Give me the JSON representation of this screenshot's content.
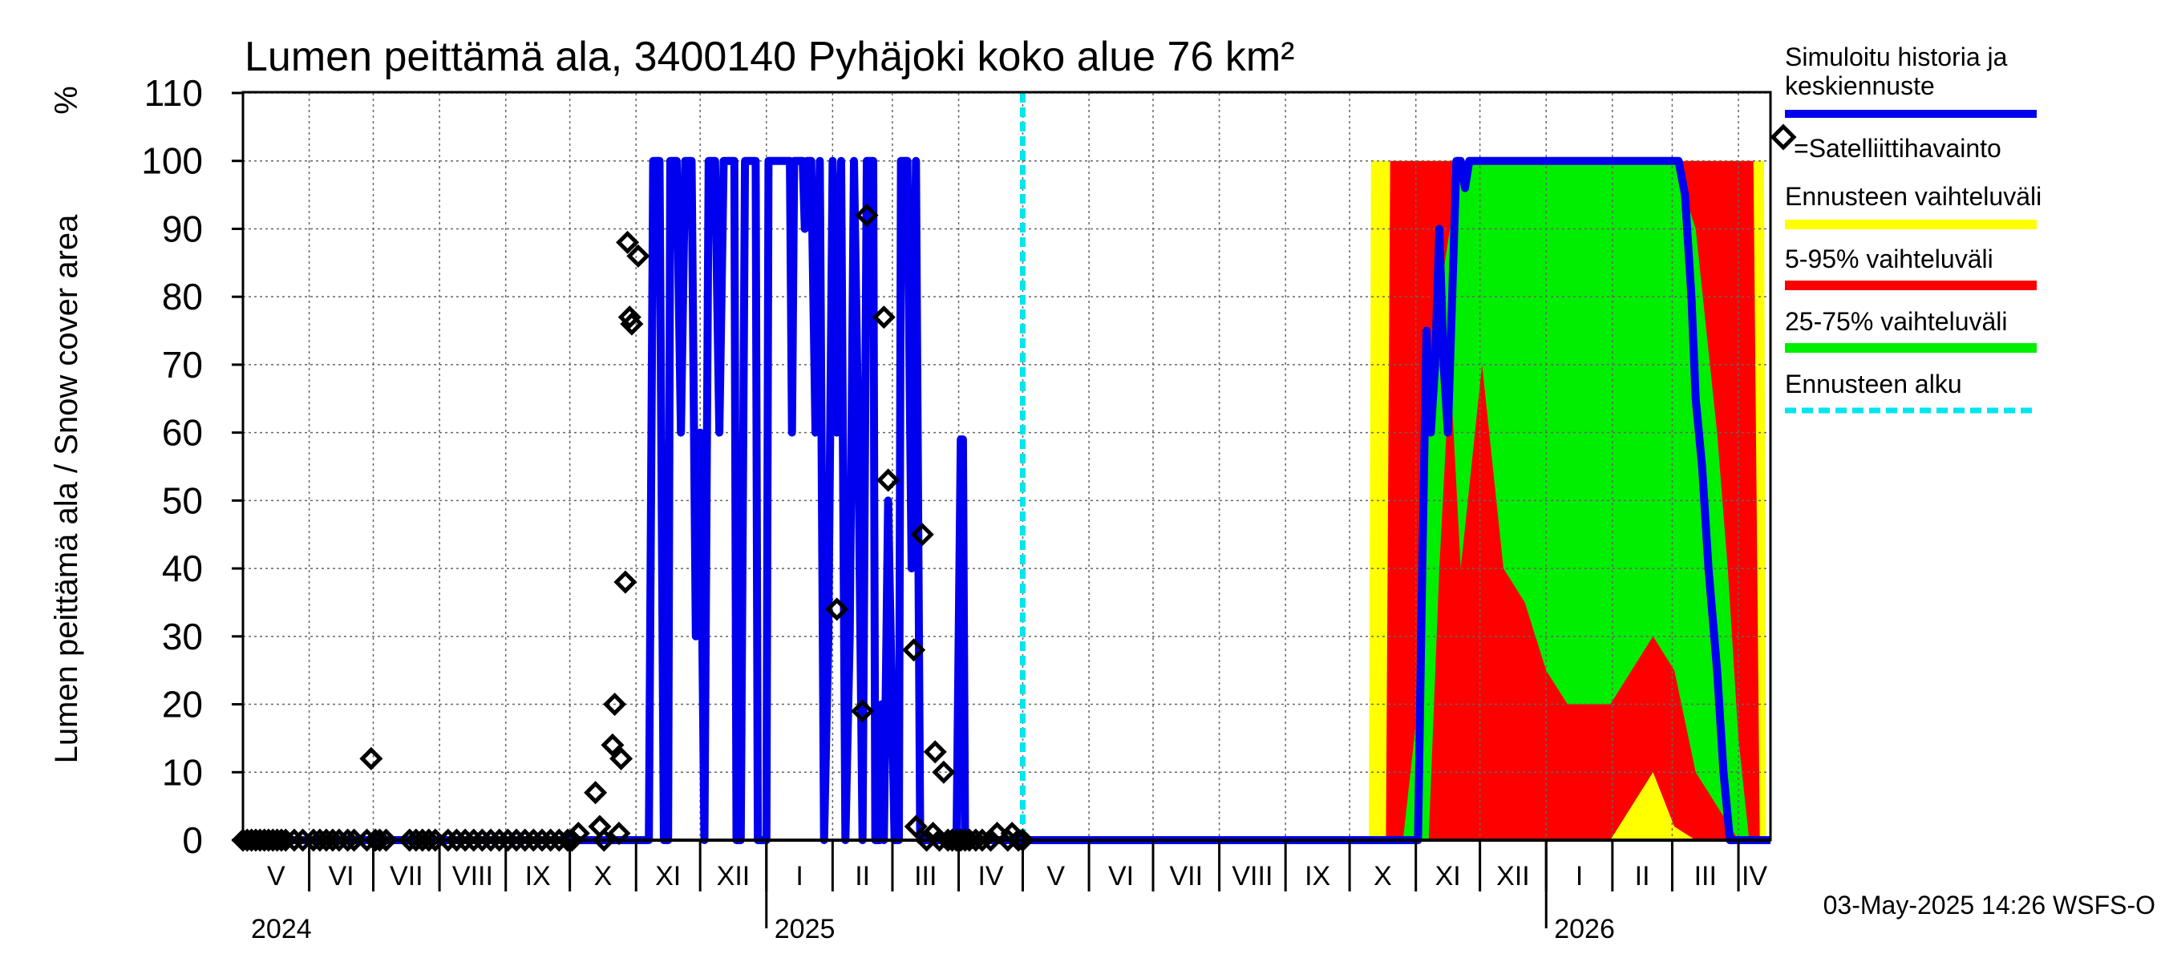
{
  "chart_data": {
    "type": "area",
    "title": "Lumen peittämä ala, 3400140 Pyhäjoki koko alue 76 km²",
    "ylabel": "Lumen peittämä ala / Snow cover area",
    "yunit": "%",
    "ylim": [
      0,
      110
    ],
    "yticks": [
      0,
      10,
      20,
      30,
      40,
      50,
      60,
      70,
      80,
      90,
      100,
      110
    ],
    "x_start_day": 0,
    "x_end_day": 715,
    "forecast_start_day": 365,
    "months": [
      {
        "label": "V",
        "start": 0,
        "end": 31
      },
      {
        "label": "VI",
        "start": 31,
        "end": 61
      },
      {
        "label": "VII",
        "start": 61,
        "end": 92
      },
      {
        "label": "VIII",
        "start": 92,
        "end": 123
      },
      {
        "label": "IX",
        "start": 123,
        "end": 153
      },
      {
        "label": "X",
        "start": 153,
        "end": 184
      },
      {
        "label": "XI",
        "start": 184,
        "end": 214
      },
      {
        "label": "XII",
        "start": 214,
        "end": 245
      },
      {
        "label": "I",
        "start": 245,
        "end": 276
      },
      {
        "label": "II",
        "start": 276,
        "end": 304
      },
      {
        "label": "III",
        "start": 304,
        "end": 335
      },
      {
        "label": "IV",
        "start": 335,
        "end": 365
      },
      {
        "label": "V",
        "start": 365,
        "end": 396
      },
      {
        "label": "VI",
        "start": 396,
        "end": 426
      },
      {
        "label": "VII",
        "start": 426,
        "end": 457
      },
      {
        "label": "VIII",
        "start": 457,
        "end": 488
      },
      {
        "label": "IX",
        "start": 488,
        "end": 518
      },
      {
        "label": "X",
        "start": 518,
        "end": 549
      },
      {
        "label": "XI",
        "start": 549,
        "end": 579
      },
      {
        "label": "XII",
        "start": 579,
        "end": 610
      },
      {
        "label": "I",
        "start": 610,
        "end": 641
      },
      {
        "label": "II",
        "start": 641,
        "end": 669
      },
      {
        "label": "III",
        "start": 669,
        "end": 700
      },
      {
        "label": "IV",
        "start": 700,
        "end": 730
      }
    ],
    "years": [
      {
        "label": "2024",
        "day": 0
      },
      {
        "label": "2025",
        "day": 245
      },
      {
        "label": "2026",
        "day": 610
      }
    ],
    "legend": {
      "history": "Simuloitu historia ja keskiennuste",
      "satellite": "=Satelliittihavainto",
      "range": "Ennusteen vaihteluväli",
      "p5_95": "5-95% vaihteluväli",
      "p25_75": "25-75% vaihteluväli",
      "forecast_start": "Ennusteen alku"
    },
    "colors": {
      "history": "#0000ee",
      "range": "#ffff00",
      "p5_95": "#ff0000",
      "p25_75": "#00ee00",
      "forecast_start": "#00e5ee",
      "grid": "#666666"
    },
    "timestamp": "03-May-2025 14:26 WSFS-O",
    "series": [
      {
        "name": "Simuloitu historia ja keskiennuste",
        "points": [
          [
            0,
            0
          ],
          [
            190,
            0
          ],
          [
            192,
            100
          ],
          [
            195,
            100
          ],
          [
            197,
            0
          ],
          [
            199,
            0
          ],
          [
            200,
            100
          ],
          [
            203,
            100
          ],
          [
            205,
            60
          ],
          [
            207,
            100
          ],
          [
            210,
            100
          ],
          [
            212,
            30
          ],
          [
            214,
            60
          ],
          [
            216,
            0
          ],
          [
            218,
            100
          ],
          [
            221,
            100
          ],
          [
            223,
            60
          ],
          [
            225,
            100
          ],
          [
            228,
            100
          ],
          [
            230,
            100
          ],
          [
            231,
            0
          ],
          [
            233,
            0
          ],
          [
            235,
            100
          ],
          [
            238,
            100
          ],
          [
            240,
            100
          ],
          [
            241,
            0
          ],
          [
            243,
            0
          ],
          [
            245,
            0
          ],
          [
            246,
            100
          ],
          [
            249,
            100
          ],
          [
            252,
            100
          ],
          [
            256,
            100
          ],
          [
            257,
            60
          ],
          [
            258,
            100
          ],
          [
            262,
            100
          ],
          [
            263,
            90
          ],
          [
            264,
            100
          ],
          [
            266,
            100
          ],
          [
            268,
            60
          ],
          [
            270,
            100
          ],
          [
            272,
            0
          ],
          [
            274,
            30
          ],
          [
            276,
            100
          ],
          [
            278,
            60
          ],
          [
            280,
            100
          ],
          [
            282,
            0
          ],
          [
            284,
            30
          ],
          [
            286,
            100
          ],
          [
            288,
            60
          ],
          [
            290,
            0
          ],
          [
            292,
            100
          ],
          [
            295,
            100
          ],
          [
            296,
            0
          ],
          [
            298,
            0
          ],
          [
            299,
            20
          ],
          [
            300,
            0
          ],
          [
            302,
            50
          ],
          [
            305,
            0
          ],
          [
            307,
            0
          ],
          [
            308,
            100
          ],
          [
            311,
            100
          ],
          [
            313,
            40
          ],
          [
            315,
            100
          ],
          [
            317,
            0
          ],
          [
            319,
            0
          ],
          [
            321,
            0
          ],
          [
            323,
            0
          ],
          [
            325,
            0
          ],
          [
            327,
            0
          ],
          [
            329,
            0
          ],
          [
            331,
            0
          ],
          [
            333,
            0
          ],
          [
            334,
            0
          ],
          [
            336,
            59
          ],
          [
            337,
            59
          ],
          [
            338,
            0
          ],
          [
            340,
            0
          ],
          [
            365,
            0
          ],
          [
            550,
            0
          ],
          [
            552,
            40
          ],
          [
            554,
            75
          ],
          [
            556,
            60
          ],
          [
            558,
            70
          ],
          [
            560,
            90
          ],
          [
            562,
            70
          ],
          [
            564,
            60
          ],
          [
            566,
            80
          ],
          [
            568,
            100
          ],
          [
            570,
            100
          ],
          [
            572,
            96
          ],
          [
            574,
            100
          ],
          [
            580,
            100
          ],
          [
            590,
            100
          ],
          [
            600,
            100
          ],
          [
            610,
            100
          ],
          [
            620,
            100
          ],
          [
            630,
            100
          ],
          [
            640,
            100
          ],
          [
            650,
            100
          ],
          [
            660,
            100
          ],
          [
            672,
            100
          ],
          [
            675,
            95
          ],
          [
            678,
            80
          ],
          [
            680,
            65
          ],
          [
            683,
            55
          ],
          [
            686,
            40
          ],
          [
            690,
            25
          ],
          [
            693,
            10
          ],
          [
            696,
            0
          ],
          [
            715,
            0
          ]
        ]
      },
      {
        "name": "=Satelliittihavainto",
        "points": [
          [
            0,
            0
          ],
          [
            2,
            0
          ],
          [
            4,
            0
          ],
          [
            6,
            0
          ],
          [
            8,
            0
          ],
          [
            10,
            0
          ],
          [
            12,
            0
          ],
          [
            14,
            0
          ],
          [
            16,
            0
          ],
          [
            18,
            0
          ],
          [
            20,
            0
          ],
          [
            24,
            0
          ],
          [
            28,
            0
          ],
          [
            33,
            0
          ],
          [
            36,
            0
          ],
          [
            39,
            0
          ],
          [
            42,
            0
          ],
          [
            45,
            0
          ],
          [
            49,
            0
          ],
          [
            52,
            0
          ],
          [
            58,
            0
          ],
          [
            60,
            12
          ],
          [
            62,
            0
          ],
          [
            64,
            0
          ],
          [
            67,
            0
          ],
          [
            78,
            0
          ],
          [
            81,
            0
          ],
          [
            84,
            0
          ],
          [
            87,
            0
          ],
          [
            90,
            0
          ],
          [
            96,
            0
          ],
          [
            100,
            0
          ],
          [
            104,
            0
          ],
          [
            108,
            0
          ],
          [
            112,
            0
          ],
          [
            116,
            0
          ],
          [
            120,
            0
          ],
          [
            124,
            0
          ],
          [
            128,
            0
          ],
          [
            132,
            0
          ],
          [
            136,
            0
          ],
          [
            140,
            0
          ],
          [
            144,
            0
          ],
          [
            148,
            0
          ],
          [
            152,
            0
          ],
          [
            154,
            0
          ],
          [
            157,
            1
          ],
          [
            165,
            7
          ],
          [
            167,
            2
          ],
          [
            169,
            0
          ],
          [
            173,
            14
          ],
          [
            174,
            20
          ],
          [
            176,
            1
          ],
          [
            177,
            12
          ],
          [
            179,
            38
          ],
          [
            180,
            88
          ],
          [
            181,
            77
          ],
          [
            182,
            76
          ],
          [
            185,
            86
          ],
          [
            278,
            34
          ],
          [
            290,
            19
          ],
          [
            292,
            92
          ],
          [
            300,
            77
          ],
          [
            302,
            53
          ],
          [
            314,
            28
          ],
          [
            315,
            2
          ],
          [
            318,
            45
          ],
          [
            320,
            0
          ],
          [
            323,
            1
          ],
          [
            324,
            13
          ],
          [
            326,
            0
          ],
          [
            328,
            10
          ],
          [
            330,
            0
          ],
          [
            332,
            0
          ],
          [
            334,
            0
          ],
          [
            336,
            0
          ],
          [
            338,
            0
          ],
          [
            340,
            0
          ],
          [
            343,
            0
          ],
          [
            346,
            0
          ],
          [
            350,
            0
          ],
          [
            353,
            1
          ],
          [
            358,
            0
          ],
          [
            360,
            1
          ],
          [
            363,
            0
          ],
          [
            365,
            0
          ]
        ]
      },
      {
        "name": "Ennusteen vaihteluväli",
        "lower": [
          [
            525,
            0
          ],
          [
            715,
            0
          ]
        ],
        "upper": [
          [
            525,
            0
          ],
          [
            527,
            0
          ],
          [
            528,
            100
          ],
          [
            700,
            100
          ],
          [
            712,
            100
          ],
          [
            713,
            0
          ],
          [
            715,
            0
          ]
        ]
      },
      {
        "name": "5-95% vaihteluväli",
        "lower": [
          [
            535,
            0
          ],
          [
            537,
            0
          ],
          [
            640,
            0
          ],
          [
            650,
            5
          ],
          [
            660,
            10
          ],
          [
            670,
            2
          ],
          [
            680,
            0
          ],
          [
            715,
            0
          ]
        ],
        "upper": [
          [
            535,
            0
          ],
          [
            537,
            100
          ],
          [
            707,
            100
          ],
          [
            710,
            0
          ]
        ]
      },
      {
        "name": "25-75% vaihteluväli",
        "lower": [
          [
            543,
            0
          ],
          [
            555,
            0
          ],
          [
            560,
            40
          ],
          [
            565,
            70
          ],
          [
            570,
            40
          ],
          [
            580,
            70
          ],
          [
            590,
            40
          ],
          [
            600,
            35
          ],
          [
            610,
            25
          ],
          [
            620,
            20
          ],
          [
            640,
            20
          ],
          [
            660,
            30
          ],
          [
            670,
            25
          ],
          [
            680,
            10
          ],
          [
            690,
            5
          ],
          [
            700,
            0
          ],
          [
            715,
            0
          ]
        ],
        "upper": [
          [
            543,
            0
          ],
          [
            550,
            20
          ],
          [
            555,
            60
          ],
          [
            560,
            80
          ],
          [
            570,
            100
          ],
          [
            580,
            100
          ],
          [
            640,
            100
          ],
          [
            670,
            100
          ],
          [
            675,
            95
          ],
          [
            680,
            90
          ],
          [
            690,
            60
          ],
          [
            695,
            40
          ],
          [
            700,
            15
          ],
          [
            705,
            0
          ],
          [
            715,
            0
          ]
        ]
      }
    ]
  }
}
